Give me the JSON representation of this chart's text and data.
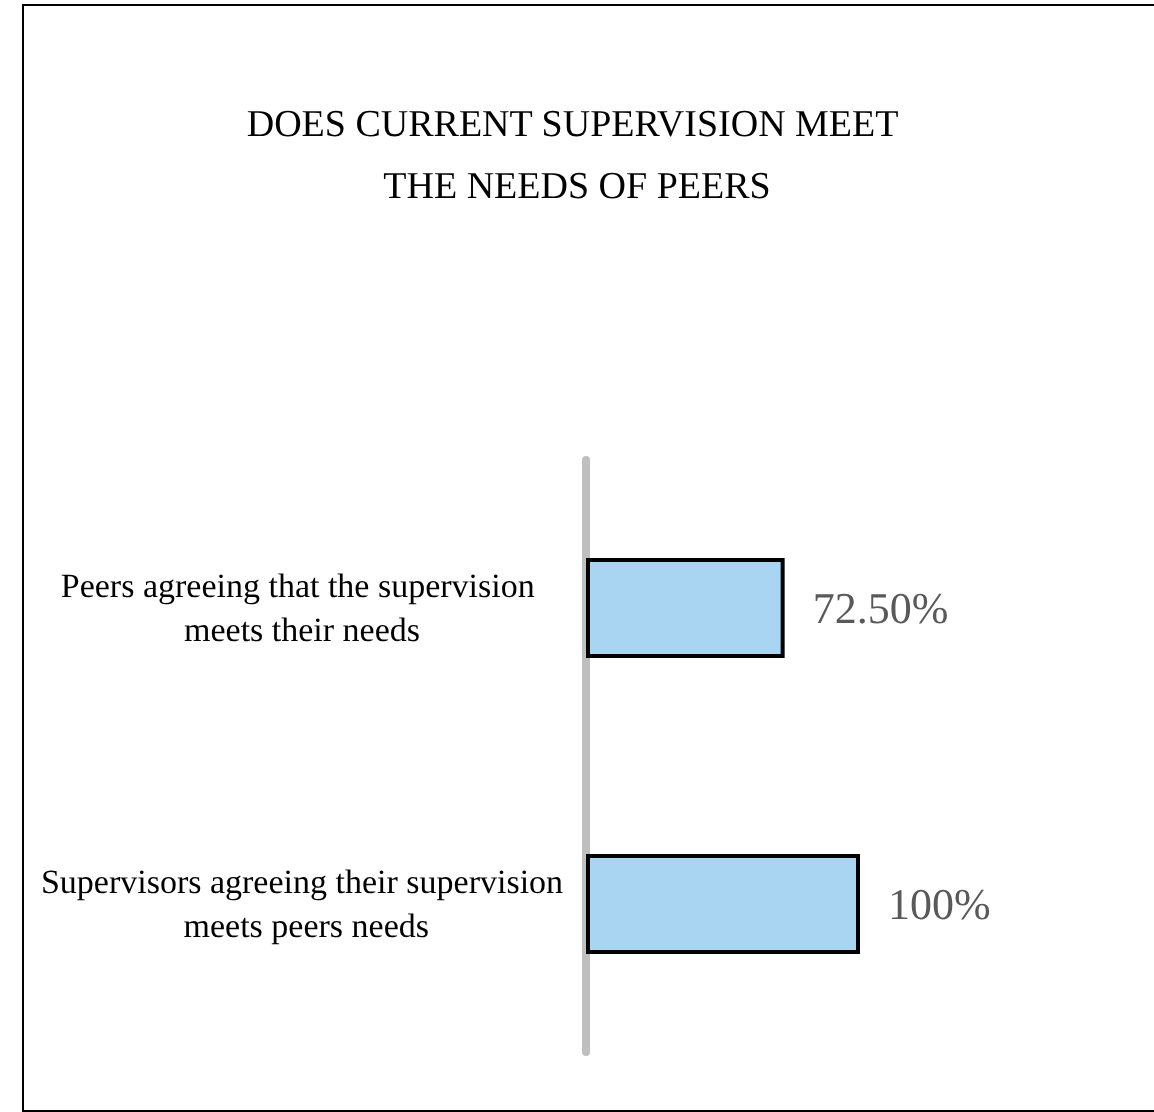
{
  "chart_data": {
    "type": "bar",
    "orientation": "horizontal",
    "title": "DOES CURRENT SUPERVISION MEET THE NEEDS OF PEERS",
    "categories": [
      "Peers agreeing that the supervision meets their needs",
      "Supervisors agreeing their supervision meets peers needs"
    ],
    "values": [
      72.5,
      100
    ],
    "value_labels": [
      "72.50%",
      "100%"
    ],
    "color": "#a9d5f2"
  }
}
